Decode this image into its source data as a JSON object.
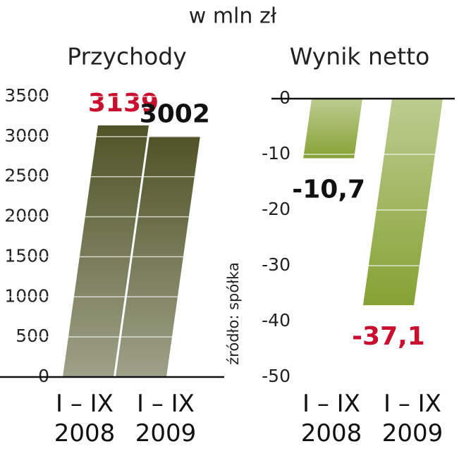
{
  "title": "w mln zł",
  "source": "źródło: spółka",
  "chart_data": [
    {
      "type": "bar",
      "title": "Przychody",
      "categories": [
        "I – IX\n2008",
        "I – IX\n2009"
      ],
      "values": [
        3139,
        3002
      ],
      "value_label_colors": [
        "#c8102e",
        "#111111"
      ],
      "color": "#4f5427",
      "ylim": [
        0,
        3500
      ],
      "yticks": [
        0,
        500,
        1000,
        1500,
        2000,
        2500,
        3000,
        3500
      ],
      "grid": true
    },
    {
      "type": "bar",
      "title": "Wynik netto",
      "categories": [
        "I – IX\n2008",
        "I – IX\n2009"
      ],
      "values": [
        -10.7,
        -37.1
      ],
      "value_labels": [
        "-10,7",
        "-37,1"
      ],
      "value_label_colors": [
        "#111111",
        "#c8102e"
      ],
      "color": "#86a235",
      "ylim": [
        -50,
        0
      ],
      "yticks": [
        0,
        -10,
        -20,
        -30,
        -40,
        -50
      ],
      "grid": true
    }
  ]
}
